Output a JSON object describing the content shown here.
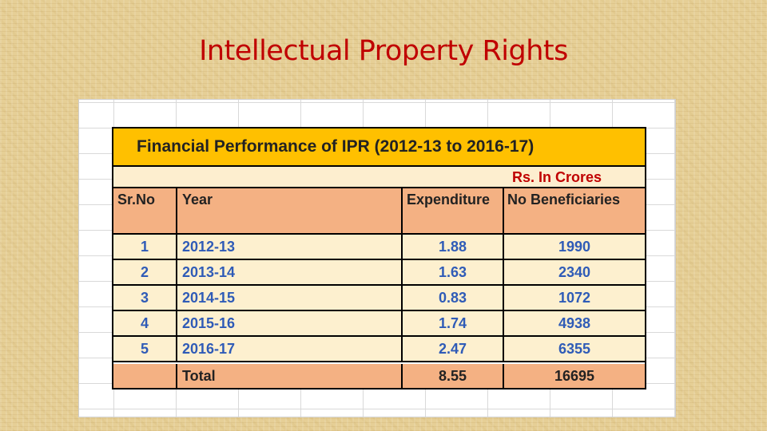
{
  "slide": {
    "title": "Intellectual Property Rights"
  },
  "table": {
    "title": "Financial Performance of IPR (2012-13 to 2016-17)",
    "units": "Rs. In Crores",
    "headers": [
      "Sr.No",
      "Year",
      "Expenditure",
      "No Beneficiaries"
    ],
    "rows": [
      [
        "1",
        "2012-13",
        "1.88",
        "1990"
      ],
      [
        "2",
        "2013-14",
        "1.63",
        "2340"
      ],
      [
        "3",
        "2014-15",
        "0.83",
        "1072"
      ],
      [
        "4",
        "2015-16",
        "1.74",
        "4938"
      ],
      [
        "5",
        "2016-17",
        "2.47",
        "6355"
      ]
    ],
    "total": {
      "label": "Total",
      "expenditure": "8.55",
      "beneficiaries": "16695"
    }
  },
  "colors": {
    "title": "#c00000",
    "banner": "#ffc000",
    "header": "#f4b183",
    "row_fill": "#fdf0cf",
    "data_text": "#2f5bb7"
  }
}
